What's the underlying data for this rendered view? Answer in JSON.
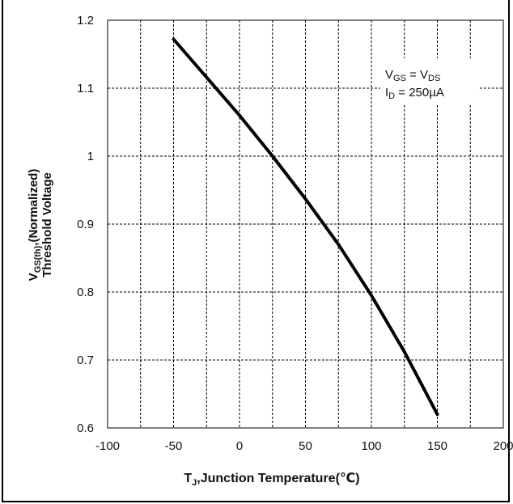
{
  "chart_data": {
    "type": "line",
    "xlim": [
      -100,
      200
    ],
    "ylim": [
      0.6,
      1.2
    ],
    "x_ticks": [
      -100,
      -50,
      0,
      50,
      100,
      150,
      200
    ],
    "x_tick_labels": [
      "-100",
      "-50",
      "0",
      "50",
      "100",
      "150",
      "200"
    ],
    "y_ticks": [
      0.6,
      0.7,
      0.8,
      0.9,
      1.0,
      1.1,
      1.2
    ],
    "y_tick_labels": [
      "0.6",
      "0.7",
      "0.8",
      "0.9",
      "1",
      "1.1",
      "1.2"
    ],
    "x_minor_step": 25,
    "grid": true,
    "xlabel": {
      "pre": "T",
      "sub": "J",
      "post": ",Junction Temperature(℃)"
    },
    "ylabel_line1": {
      "pre": "V",
      "sub": "GS(th)",
      "post": ",(Normalized)"
    },
    "ylabel_line2": "Threshold Voltage",
    "annotation": {
      "line1": {
        "a": "V",
        "a_sub": "GS",
        "mid": " = V",
        "b_sub": "DS"
      },
      "line2": {
        "a": "I",
        "a_sub": "D",
        "rest": " = 250µA"
      }
    },
    "series": [
      {
        "color": "#000000",
        "x": [
          -50,
          -25,
          0,
          25,
          50,
          75,
          100,
          125,
          150
        ],
        "y": [
          1.172,
          1.116,
          1.06,
          1.0,
          0.937,
          0.87,
          0.795,
          0.712,
          0.62
        ]
      }
    ]
  }
}
